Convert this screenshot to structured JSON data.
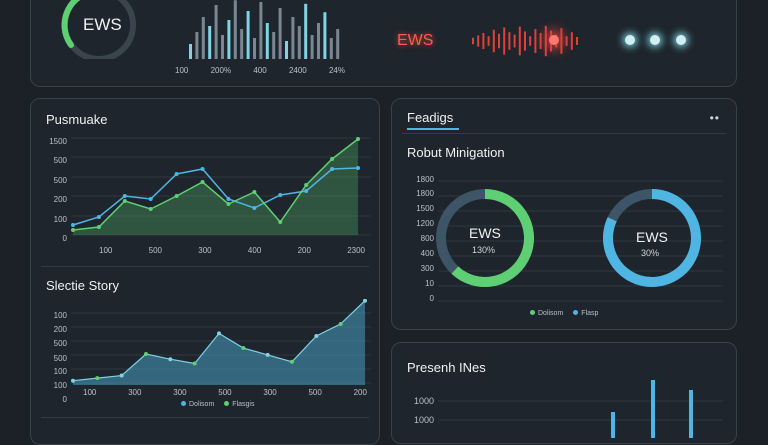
{
  "top": {
    "ews_label": "EWS",
    "ews_alert_label": "EWS",
    "bar_ticks": [
      "100",
      "200%",
      "400",
      "2400",
      "24%"
    ],
    "colors": {
      "green": "#5fcf73",
      "blue": "#4fb6e3",
      "red": "#e0403a",
      "teal": "#7fd3e3"
    }
  },
  "chart1": {
    "title": "Pusmuake",
    "chart_data": {
      "type": "line",
      "ylabels": [
        "1500",
        "500",
        "500",
        "200",
        "100",
        "0"
      ],
      "xlabels": [
        "100",
        "500",
        "300",
        "400",
        "200",
        "2300"
      ],
      "series": [
        {
          "color": "#4fb6e3",
          "values": [
            0.1,
            0.18,
            0.39,
            0.36,
            0.61,
            0.66,
            0.36,
            0.27,
            0.4,
            0.44,
            0.66,
            0.67
          ]
        },
        {
          "color": "#5fcf73",
          "values": [
            0.05,
            0.08,
            0.34,
            0.26,
            0.39,
            0.53,
            0.31,
            0.43,
            0.13,
            0.5,
            0.76,
            0.96
          ]
        }
      ]
    }
  },
  "chart2": {
    "title": "Slectie Story",
    "chart_data": {
      "type": "area",
      "ylabels": [
        "100",
        "200",
        "500",
        "500",
        "100",
        "100",
        "0"
      ],
      "xlabels": [
        "100",
        "300",
        "300",
        "500",
        "300",
        "500",
        "200"
      ],
      "legend": [
        "Dolisom",
        "Flasgis"
      ],
      "values": [
        0.05,
        0.08,
        0.11,
        0.36,
        0.3,
        0.25,
        0.6,
        0.43,
        0.35,
        0.27,
        0.57,
        0.71,
        0.98
      ]
    }
  },
  "right1": {
    "title": "Feadigs",
    "subtitle": "Robut Minigation",
    "ylabels": [
      "1800",
      "1800",
      "1500",
      "1200",
      "800",
      "400",
      "300",
      "10",
      "0"
    ],
    "gauge_left": {
      "label": "EWS",
      "value_text": "130%",
      "fraction": 0.62
    },
    "gauge_right": {
      "label": "EWS",
      "value_text": "30%",
      "fraction": 0.82
    },
    "legend": [
      "Dolisom",
      "Flasp"
    ]
  },
  "right2": {
    "title": "Presenh INes",
    "ylabels": [
      "1000",
      "1000"
    ]
  }
}
